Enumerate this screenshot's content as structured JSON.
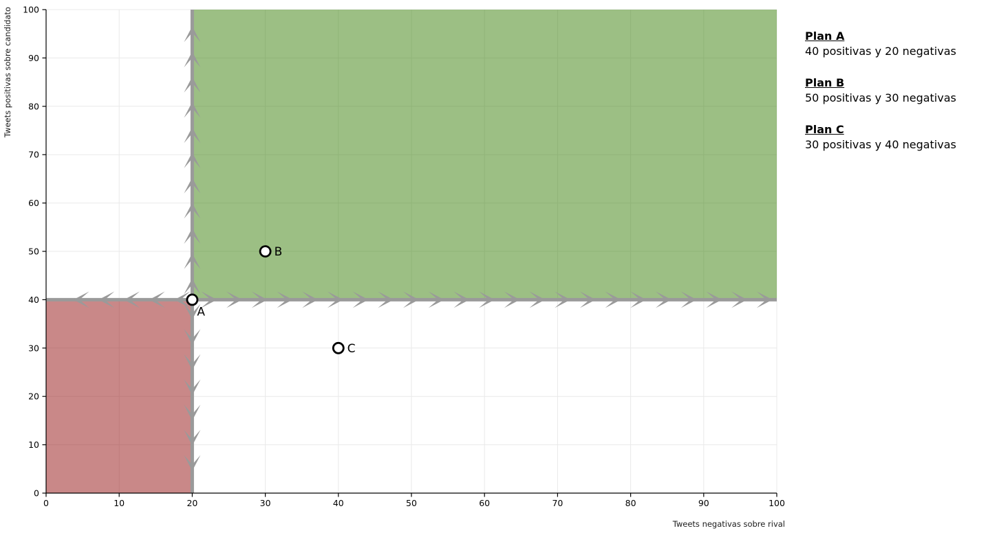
{
  "chart_data": {
    "type": "scatter",
    "xlabel": "Tweets negativas sobre rival",
    "ylabel": "Tweets positivas sobre candidato",
    "xlim": [
      0,
      100
    ],
    "ylim": [
      0,
      100
    ],
    "xticks": [
      0,
      10,
      20,
      30,
      40,
      50,
      60,
      70,
      80,
      90,
      100
    ],
    "yticks": [
      0,
      10,
      20,
      30,
      40,
      50,
      60,
      70,
      80,
      90,
      100
    ],
    "grid": true,
    "regions": [
      {
        "name": "feasible-region",
        "x": [
          20,
          100
        ],
        "y": [
          40,
          100
        ],
        "fill": "rgba(58,128,10,0.5)"
      },
      {
        "name": "excluded-region",
        "x": [
          0,
          20
        ],
        "y": [
          0,
          40
        ],
        "fill": "rgba(148,18,18,0.5)"
      }
    ],
    "constraint_lines": [
      {
        "name": "constraint-line-vertical",
        "axis": "x",
        "value": 20,
        "arrows": "away-from-intersection"
      },
      {
        "name": "constraint-line-horizontal",
        "axis": "y",
        "value": 40,
        "arrows": "away-from-intersection"
      }
    ],
    "arrow_intersection": {
      "x": 20,
      "y": 40
    },
    "points": [
      {
        "label": "A",
        "x": 20,
        "y": 40,
        "label_side": "below-right"
      },
      {
        "label": "B",
        "x": 30,
        "y": 50,
        "label_side": "right"
      },
      {
        "label": "C",
        "x": 40,
        "y": 30,
        "label_side": "right"
      }
    ],
    "colors": {
      "grid": "#e9e9e9",
      "axis": "#000000",
      "tick_label": "#000000",
      "axis_title": "#1a1a1a",
      "constraint_line": "#9a9a9a",
      "arrow": "#9a9a9a",
      "point_fill": "#ffffff",
      "point_stroke": "#000000",
      "feasible_apparent": "#9cc184",
      "excluded_apparent": "#c98888"
    }
  },
  "legend": {
    "items": [
      {
        "title": "Plan A",
        "detail": "40 positivas y 20 negativas"
      },
      {
        "title": "Plan B",
        "detail": "50 positivas y 30 negativas"
      },
      {
        "title": "Plan C",
        "detail": "30 positivas y 40 negativas"
      }
    ]
  }
}
